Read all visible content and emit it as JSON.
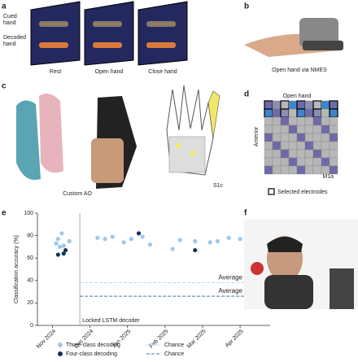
{
  "panels": {
    "a": {
      "label": "a",
      "row_labels": [
        "Cued\nhand",
        "Decoded\nhand"
      ],
      "cues": [
        "Rest",
        "Open hand",
        "Close hand"
      ]
    },
    "b": {
      "label": "b",
      "caption": "Open hand via NMES"
    },
    "c": {
      "label": "c",
      "caption": "Custom AO",
      "inset": "S1c"
    },
    "d": {
      "label": "d",
      "top": "Open hand",
      "side": "Anterior",
      "corner": "M1a",
      "legend": "Selected electrodes"
    },
    "e": {
      "label": "e"
    },
    "f": {
      "label": "f"
    }
  },
  "chart_data": {
    "type": "scatter",
    "ylabel": "Classification accuracy (%)",
    "xlim": [
      -0.4,
      5.8
    ],
    "ylim": [
      0,
      100
    ],
    "xticks": [
      {
        "value": 0,
        "label": "Nov 2024"
      },
      {
        "value": 1,
        "label": "Dec 2024"
      },
      {
        "value": 2,
        "label": "Jan 2025"
      },
      {
        "value": 3,
        "label": "Feb 2025"
      },
      {
        "value": 4,
        "label": "Mar 2025"
      },
      {
        "value": 5,
        "label": "Apr 2025"
      }
    ],
    "yticks": [
      0,
      20,
      40,
      60,
      80,
      100
    ],
    "series": [
      {
        "name": "Three-class decoding",
        "color": "#9cc8ec",
        "x": [
          0.1,
          0.15,
          0.2,
          0.25,
          0.3,
          0.45,
          1.2,
          1.4,
          1.6,
          1.9,
          2.1,
          2.4,
          2.6,
          3.2,
          3.4,
          3.8,
          4.2,
          4.4,
          4.7,
          5.0,
          5.2,
          5.4
        ],
        "values": [
          73,
          77,
          70,
          82,
          71,
          75,
          78,
          77,
          79,
          74,
          77,
          79,
          72,
          68,
          76,
          75,
          74,
          75,
          78,
          77,
          80,
          80
        ]
      },
      {
        "name": "Four-class decoding",
        "color": "#14335c",
        "x": [
          0.15,
          0.3,
          0.35,
          2.3,
          3.8,
          5.4
        ],
        "values": [
          63,
          64,
          67,
          82,
          67,
          82
        ]
      }
    ],
    "chance": [
      {
        "name": "Chance",
        "label": "Average chance",
        "color": "#b8d8f2",
        "value": 38
      },
      {
        "name": "Chance",
        "label": "Average chance",
        "color": "#3a78b8",
        "value": 26
      }
    ],
    "vline": {
      "x": 0.73,
      "label": "Locked LSTM decoder"
    }
  }
}
